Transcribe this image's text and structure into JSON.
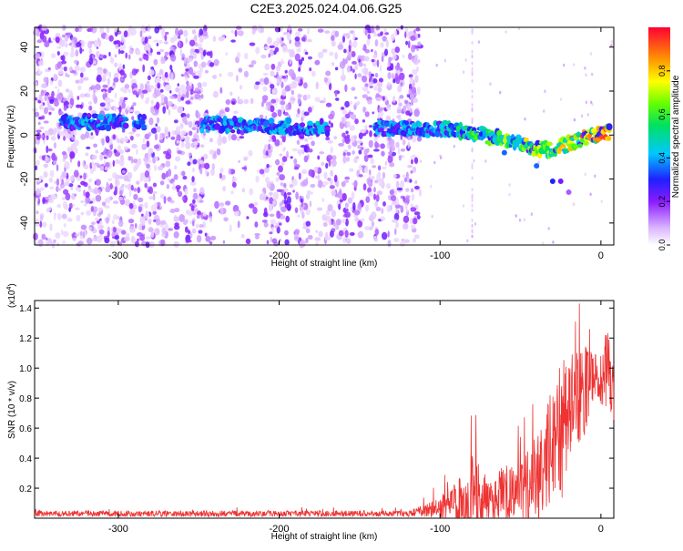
{
  "title": "C2E3.2025.024.04.06.G25",
  "chart_data": [
    {
      "type": "heatmap",
      "xlabel": "Height of straight line (km)",
      "ylabel": "Frequency (Hz)",
      "xlim": [
        -352,
        8
      ],
      "ylim": [
        -50,
        49
      ],
      "xticks": [
        -300,
        -200,
        -100,
        0
      ],
      "yticks": [
        -40,
        -20,
        0,
        20,
        40
      ],
      "colorbar": {
        "label": "Normalized spectral amplitude",
        "range": [
          0,
          1
        ],
        "ticks": [
          0.0,
          0.2,
          0.4,
          0.6,
          0.8
        ]
      },
      "ridge": {
        "x": [
          -330,
          -300,
          -250,
          -200,
          -150,
          -120,
          -100,
          -80,
          -60,
          -40,
          -30,
          -20,
          -10,
          0,
          8
        ],
        "y": [
          6,
          6,
          5,
          4,
          3,
          3,
          3,
          1,
          -2,
          -6,
          -7,
          -4,
          -1,
          1,
          1
        ]
      }
    },
    {
      "type": "line",
      "xlabel": "Height of straight line (km)",
      "ylabel": "SNR (10 * v/v)",
      "yscale_label": "(x10",
      "yscale_exp": "4",
      "xlim": [
        -352,
        8
      ],
      "ylim": [
        0,
        1.45
      ],
      "xticks": [
        -300,
        -200,
        -100,
        0
      ],
      "yticks": [
        0.2,
        0.4,
        0.6,
        0.8,
        1.0,
        1.2,
        1.4
      ],
      "series": [
        {
          "color": "#ee3333",
          "envelope_x": [
            -352,
            -300,
            -250,
            -200,
            -150,
            -120,
            -110,
            -100,
            -90,
            -80,
            -70,
            -60,
            -50,
            -40,
            -35,
            -30,
            -25,
            -20,
            -15,
            -10,
            -5,
            0,
            8
          ],
          "envelope_base": [
            0.03,
            0.03,
            0.03,
            0.03,
            0.03,
            0.03,
            0.05,
            0.08,
            0.1,
            0.12,
            0.12,
            0.15,
            0.18,
            0.25,
            0.35,
            0.5,
            0.6,
            0.7,
            0.8,
            0.85,
            0.9,
            0.95,
            1.0
          ],
          "envelope_amp": [
            0.02,
            0.02,
            0.02,
            0.02,
            0.02,
            0.02,
            0.04,
            0.08,
            0.15,
            0.3,
            0.15,
            0.2,
            0.2,
            0.3,
            0.35,
            0.45,
            0.5,
            0.4,
            0.35,
            0.3,
            0.2,
            0.2,
            0.35
          ]
        }
      ]
    }
  ]
}
